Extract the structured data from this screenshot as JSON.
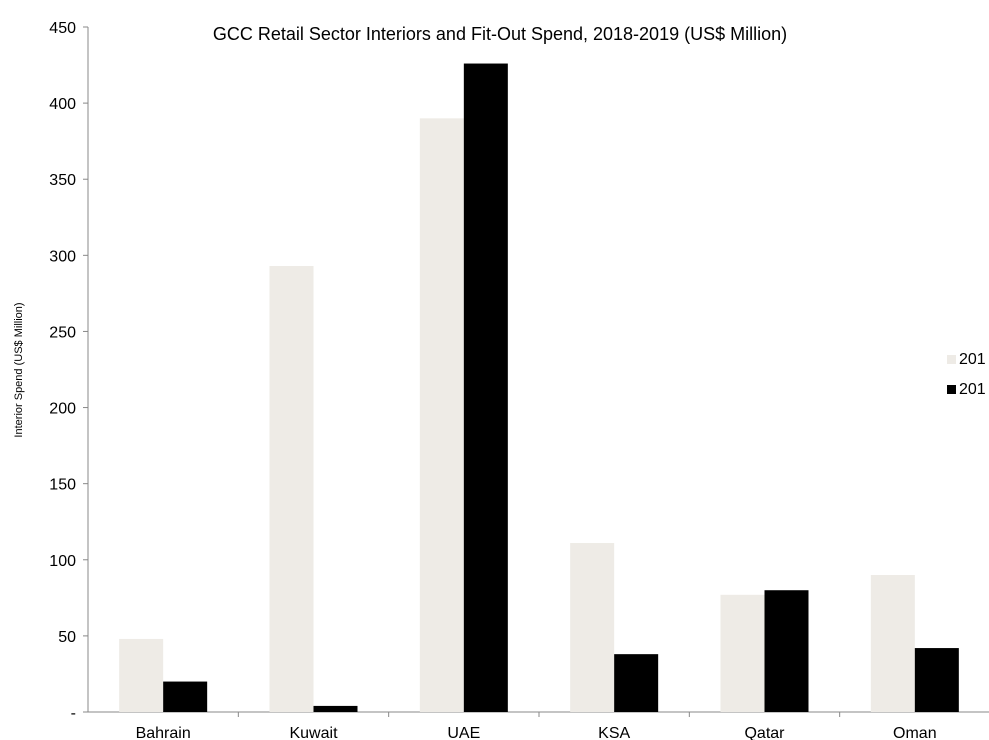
{
  "chart_data": {
    "type": "bar",
    "title": "GCC Retail Sector Interiors  and Fit-Out Spend, 2018-2019 (US$ Million)",
    "xlabel": "",
    "ylabel": "Interior Spend (US$ Million)",
    "ylim": [
      0,
      450
    ],
    "yticks": [
      {
        "value": 0,
        "label": "-"
      },
      {
        "value": 50,
        "label": "50"
      },
      {
        "value": 100,
        "label": "100"
      },
      {
        "value": 150,
        "label": "150"
      },
      {
        "value": 200,
        "label": "200"
      },
      {
        "value": 250,
        "label": "250"
      },
      {
        "value": 300,
        "label": "300"
      },
      {
        "value": 350,
        "label": "350"
      },
      {
        "value": 400,
        "label": "400"
      },
      {
        "value": 450,
        "label": "450"
      }
    ],
    "categories": [
      "Bahrain",
      "Kuwait",
      "UAE",
      "KSA",
      "Qatar",
      "Oman"
    ],
    "series": [
      {
        "name": "201",
        "color": "#eeebe6",
        "values": [
          48,
          293,
          390,
          111,
          77,
          90
        ]
      },
      {
        "name": "201",
        "color": "#000000",
        "values": [
          20,
          4,
          426,
          38,
          80,
          42
        ]
      }
    ],
    "legend_position": "right",
    "grid": false
  }
}
